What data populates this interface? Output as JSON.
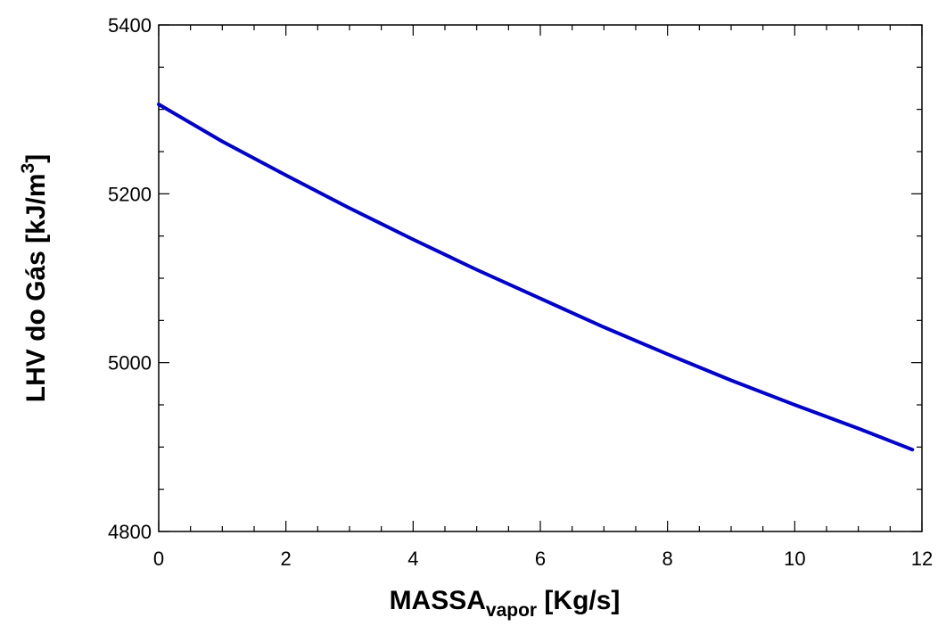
{
  "chart_data": {
    "type": "line",
    "xlabel": {
      "main": "MASSA",
      "sub": "vapor",
      "rest": " [Kg/s]"
    },
    "ylabel": {
      "main": "LHV do Gás  [kJ/m",
      "sup": "3",
      "rest": "]"
    },
    "xlim": [
      0,
      12
    ],
    "ylim": [
      4800,
      5400
    ],
    "x_ticks": [
      "0",
      "2",
      "4",
      "6",
      "8",
      "10",
      "12"
    ],
    "y_ticks": [
      "4800",
      "5000",
      "5200",
      "5400"
    ],
    "grid": false,
    "series": [
      {
        "color": "#0000cc",
        "x": [
          0,
          1,
          2,
          3,
          4,
          5,
          6,
          7,
          8,
          9,
          10,
          11,
          11.85
        ],
        "y": [
          5306,
          5262,
          5222,
          5183,
          5146,
          5110,
          5076,
          5042,
          5010,
          4979,
          4950,
          4922,
          4897
        ]
      }
    ]
  }
}
